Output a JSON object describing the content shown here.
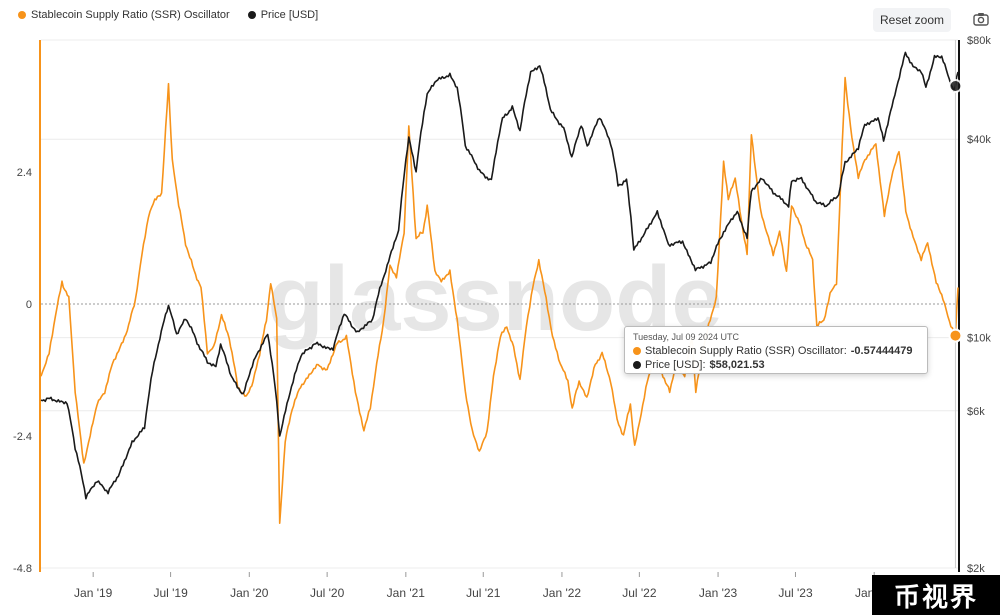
{
  "chart_data": {
    "type": "line",
    "title": "",
    "watermark": "glassnode",
    "x_ticks": [
      "Jan '19",
      "Jul '19",
      "Jan '20",
      "Jul '20",
      "Jan '21",
      "Jul '21",
      "Jan '22",
      "Jul '22",
      "Jan '23",
      "Jul '23",
      "Jan '24"
    ],
    "y_left_ticks": [
      "2.4",
      "0",
      "-2.4",
      "-4.8"
    ],
    "y_left_range": [
      -4.8,
      4.8
    ],
    "y_right_ticks": [
      "$80k",
      "$40k",
      "$10k",
      "$6k",
      "$2k"
    ],
    "y_right_scale": "log",
    "y_right_range": [
      2000,
      80000
    ],
    "x_range": [
      "2018-09-01",
      "2024-07-15"
    ],
    "series": [
      {
        "name": "Stablecoin Supply Ratio (SSR) Oscillator",
        "axis": "left",
        "color": "#f7931a",
        "points": [
          [
            "2018-09-01",
            -1.3
          ],
          [
            "2018-09-20",
            -0.9
          ],
          [
            "2018-10-05",
            -0.2
          ],
          [
            "2018-10-20",
            0.4
          ],
          [
            "2018-11-05",
            0.1
          ],
          [
            "2018-11-20",
            -1.6
          ],
          [
            "2018-12-10",
            -2.9
          ],
          [
            "2018-12-25",
            -2.4
          ],
          [
            "2019-01-10",
            -1.8
          ],
          [
            "2019-01-28",
            -1.6
          ],
          [
            "2019-02-15",
            -1.1
          ],
          [
            "2019-03-05",
            -0.8
          ],
          [
            "2019-03-25",
            -0.4
          ],
          [
            "2019-04-10",
            0.1
          ],
          [
            "2019-04-25",
            0.9
          ],
          [
            "2019-05-10",
            1.6
          ],
          [
            "2019-05-25",
            1.9
          ],
          [
            "2019-06-10",
            2.0
          ],
          [
            "2019-06-26",
            4.0
          ],
          [
            "2019-07-05",
            2.6
          ],
          [
            "2019-07-20",
            1.8
          ],
          [
            "2019-08-05",
            1.1
          ],
          [
            "2019-08-25",
            0.6
          ],
          [
            "2019-09-10",
            0.3
          ],
          [
            "2019-09-25",
            -0.9
          ],
          [
            "2019-10-10",
            -0.8
          ],
          [
            "2019-10-28",
            -0.2
          ],
          [
            "2019-11-15",
            -0.6
          ],
          [
            "2019-12-05",
            -1.5
          ],
          [
            "2019-12-25",
            -1.7
          ],
          [
            "2020-01-10",
            -1.4
          ],
          [
            "2020-01-25",
            -0.9
          ],
          [
            "2020-02-10",
            -0.3
          ],
          [
            "2020-02-20",
            0.4
          ],
          [
            "2020-03-05",
            -0.3
          ],
          [
            "2020-03-12",
            -4.0
          ],
          [
            "2020-03-25",
            -2.5
          ],
          [
            "2020-04-10",
            -1.9
          ],
          [
            "2020-04-30",
            -1.5
          ],
          [
            "2020-05-20",
            -1.3
          ],
          [
            "2020-06-10",
            -1.1
          ],
          [
            "2020-07-01",
            -1.2
          ],
          [
            "2020-07-25",
            -0.7
          ],
          [
            "2020-08-15",
            -0.6
          ],
          [
            "2020-09-05",
            -1.6
          ],
          [
            "2020-09-25",
            -2.3
          ],
          [
            "2020-10-10",
            -1.9
          ],
          [
            "2020-10-25",
            -1.1
          ],
          [
            "2020-11-10",
            -0.3
          ],
          [
            "2020-11-25",
            0.7
          ],
          [
            "2020-12-10",
            0.5
          ],
          [
            "2020-12-28",
            1.3
          ],
          [
            "2021-01-08",
            3.2
          ],
          [
            "2021-01-25",
            1.2
          ],
          [
            "2021-02-10",
            1.3
          ],
          [
            "2021-02-20",
            1.8
          ],
          [
            "2021-03-10",
            0.6
          ],
          [
            "2021-03-25",
            0.4
          ],
          [
            "2021-04-14",
            0.6
          ],
          [
            "2021-05-01",
            -0.3
          ],
          [
            "2021-05-20",
            -1.6
          ],
          [
            "2021-06-05",
            -2.3
          ],
          [
            "2021-06-22",
            -2.7
          ],
          [
            "2021-07-10",
            -2.3
          ],
          [
            "2021-07-25",
            -1.3
          ],
          [
            "2021-08-10",
            -0.6
          ],
          [
            "2021-08-25",
            -0.4
          ],
          [
            "2021-09-10",
            -0.8
          ],
          [
            "2021-09-25",
            -1.4
          ],
          [
            "2021-10-10",
            -0.4
          ],
          [
            "2021-10-25",
            0.3
          ],
          [
            "2021-11-08",
            0.8
          ],
          [
            "2021-11-25",
            0.1
          ],
          [
            "2021-12-10",
            -0.6
          ],
          [
            "2021-12-28",
            -1.1
          ],
          [
            "2022-01-15",
            -1.4
          ],
          [
            "2022-01-25",
            -1.9
          ],
          [
            "2022-02-10",
            -1.4
          ],
          [
            "2022-02-28",
            -1.7
          ],
          [
            "2022-03-20",
            -1.1
          ],
          [
            "2022-04-05",
            -0.9
          ],
          [
            "2022-04-25",
            -1.4
          ],
          [
            "2022-05-10",
            -2.1
          ],
          [
            "2022-05-25",
            -2.4
          ],
          [
            "2022-06-10",
            -1.8
          ],
          [
            "2022-06-20",
            -2.6
          ],
          [
            "2022-07-05",
            -2.0
          ],
          [
            "2022-07-20",
            -1.4
          ],
          [
            "2022-08-10",
            -0.9
          ],
          [
            "2022-08-25",
            -1.3
          ],
          [
            "2022-09-10",
            -1.6
          ],
          [
            "2022-09-25",
            -1.1
          ],
          [
            "2022-10-15",
            -1.3
          ],
          [
            "2022-11-01",
            -0.6
          ],
          [
            "2022-11-10",
            -1.6
          ],
          [
            "2022-11-25",
            -0.9
          ],
          [
            "2022-12-10",
            -0.4
          ],
          [
            "2022-12-28",
            0.1
          ],
          [
            "2023-01-14",
            2.6
          ],
          [
            "2023-01-25",
            1.9
          ],
          [
            "2023-02-10",
            2.3
          ],
          [
            "2023-02-25",
            1.5
          ],
          [
            "2023-03-10",
            0.9
          ],
          [
            "2023-03-20",
            3.1
          ],
          [
            "2023-04-10",
            1.7
          ],
          [
            "2023-04-25",
            1.3
          ],
          [
            "2023-05-10",
            0.9
          ],
          [
            "2023-05-25",
            1.3
          ],
          [
            "2023-06-10",
            0.6
          ],
          [
            "2023-06-22",
            1.8
          ],
          [
            "2023-07-10",
            1.5
          ],
          [
            "2023-07-25",
            1.1
          ],
          [
            "2023-08-10",
            0.8
          ],
          [
            "2023-08-20",
            -0.4
          ],
          [
            "2023-09-05",
            -0.3
          ],
          [
            "2023-09-20",
            0.2
          ],
          [
            "2023-10-05",
            0.4
          ],
          [
            "2023-10-25",
            4.1
          ],
          [
            "2023-11-10",
            3.0
          ],
          [
            "2023-11-25",
            2.3
          ],
          [
            "2023-12-10",
            2.6
          ],
          [
            "2024-01-05",
            2.9
          ],
          [
            "2024-01-25",
            1.6
          ],
          [
            "2024-02-10",
            2.3
          ],
          [
            "2024-02-28",
            2.8
          ],
          [
            "2024-03-15",
            1.7
          ],
          [
            "2024-04-01",
            1.2
          ],
          [
            "2024-04-20",
            0.8
          ],
          [
            "2024-05-05",
            1.1
          ],
          [
            "2024-05-25",
            0.4
          ],
          [
            "2024-06-10",
            0.1
          ],
          [
            "2024-06-25",
            -0.3
          ],
          [
            "2024-07-09",
            -0.57444479
          ],
          [
            "2024-07-15",
            0.3
          ]
        ]
      },
      {
        "name": "Price [USD]",
        "axis": "right",
        "color": "#1a1a1a",
        "points": [
          [
            "2018-09-01",
            6500
          ],
          [
            "2018-10-01",
            6500
          ],
          [
            "2018-11-01",
            6300
          ],
          [
            "2018-11-20",
            4600
          ],
          [
            "2018-12-15",
            3300
          ],
          [
            "2019-01-10",
            3700
          ],
          [
            "2019-02-05",
            3400
          ],
          [
            "2019-03-01",
            3800
          ],
          [
            "2019-04-02",
            4800
          ],
          [
            "2019-05-01",
            5300
          ],
          [
            "2019-05-20",
            7900
          ],
          [
            "2019-06-26",
            12500
          ],
          [
            "2019-07-15",
            10200
          ],
          [
            "2019-08-05",
            11500
          ],
          [
            "2019-09-01",
            9700
          ],
          [
            "2019-09-25",
            8400
          ],
          [
            "2019-10-15",
            8200
          ],
          [
            "2019-10-26",
            9500
          ],
          [
            "2019-11-20",
            7600
          ],
          [
            "2019-12-18",
            6700
          ],
          [
            "2020-01-15",
            8700
          ],
          [
            "2020-02-13",
            10300
          ],
          [
            "2020-03-12",
            5000
          ],
          [
            "2020-04-05",
            6800
          ],
          [
            "2020-05-01",
            8800
          ],
          [
            "2020-06-01",
            9600
          ],
          [
            "2020-07-15",
            9200
          ],
          [
            "2020-08-10",
            11800
          ],
          [
            "2020-09-10",
            10300
          ],
          [
            "2020-10-15",
            11400
          ],
          [
            "2020-11-15",
            16000
          ],
          [
            "2020-12-15",
            21000
          ],
          [
            "2021-01-08",
            40000
          ],
          [
            "2021-01-25",
            32000
          ],
          [
            "2021-02-20",
            55000
          ],
          [
            "2021-03-13",
            60000
          ],
          [
            "2021-04-14",
            63000
          ],
          [
            "2021-05-01",
            57000
          ],
          [
            "2021-05-20",
            38000
          ],
          [
            "2021-06-22",
            32000
          ],
          [
            "2021-07-20",
            30000
          ],
          [
            "2021-08-15",
            46000
          ],
          [
            "2021-09-07",
            50000
          ],
          [
            "2021-09-25",
            42000
          ],
          [
            "2021-10-20",
            64000
          ],
          [
            "2021-11-10",
            67000
          ],
          [
            "2021-12-05",
            49000
          ],
          [
            "2022-01-05",
            43000
          ],
          [
            "2022-01-24",
            35000
          ],
          [
            "2022-02-15",
            44000
          ],
          [
            "2022-03-01",
            38000
          ],
          [
            "2022-03-30",
            47000
          ],
          [
            "2022-04-25",
            39000
          ],
          [
            "2022-05-12",
            29000
          ],
          [
            "2022-06-01",
            30000
          ],
          [
            "2022-06-18",
            18500
          ],
          [
            "2022-07-10",
            20500
          ],
          [
            "2022-08-12",
            24000
          ],
          [
            "2022-09-07",
            19000
          ],
          [
            "2022-10-10",
            19500
          ],
          [
            "2022-11-09",
            16000
          ],
          [
            "2022-12-15",
            17000
          ],
          [
            "2023-01-14",
            21000
          ],
          [
            "2023-02-15",
            24000
          ],
          [
            "2023-03-10",
            20000
          ],
          [
            "2023-03-20",
            28000
          ],
          [
            "2023-04-14",
            30500
          ],
          [
            "2023-05-10",
            27500
          ],
          [
            "2023-06-15",
            25000
          ],
          [
            "2023-06-22",
            30000
          ],
          [
            "2023-07-15",
            30300
          ],
          [
            "2023-08-17",
            26000
          ],
          [
            "2023-09-11",
            25000
          ],
          [
            "2023-10-10",
            27000
          ],
          [
            "2023-10-25",
            34000
          ],
          [
            "2023-11-25",
            37500
          ],
          [
            "2023-12-10",
            44000
          ],
          [
            "2024-01-10",
            46500
          ],
          [
            "2024-01-23",
            39500
          ],
          [
            "2024-02-15",
            52000
          ],
          [
            "2024-03-14",
            73000
          ],
          [
            "2024-04-01",
            66000
          ],
          [
            "2024-04-20",
            64000
          ],
          [
            "2024-05-01",
            57000
          ],
          [
            "2024-05-21",
            71000
          ],
          [
            "2024-06-07",
            71000
          ],
          [
            "2024-06-25",
            61000
          ],
          [
            "2024-07-05",
            56000
          ],
          [
            "2024-07-09",
            58021.53
          ],
          [
            "2024-07-15",
            64000
          ]
        ]
      }
    ],
    "tooltip": {
      "date": "Tuesday, Jul 09 2024 UTC",
      "rows": [
        {
          "label": "Stablecoin Supply Ratio (SSR) Oscillator:",
          "value": "-0.57444479",
          "color": "#f7931a"
        },
        {
          "label": "Price [USD]:",
          "value": "$58,021.53",
          "color": "#1a1a1a"
        }
      ]
    }
  },
  "toolbar": {
    "reset_zoom_label": "Reset zoom",
    "camera_icon": "camera-icon"
  },
  "badge": {
    "text": "币视界"
  }
}
